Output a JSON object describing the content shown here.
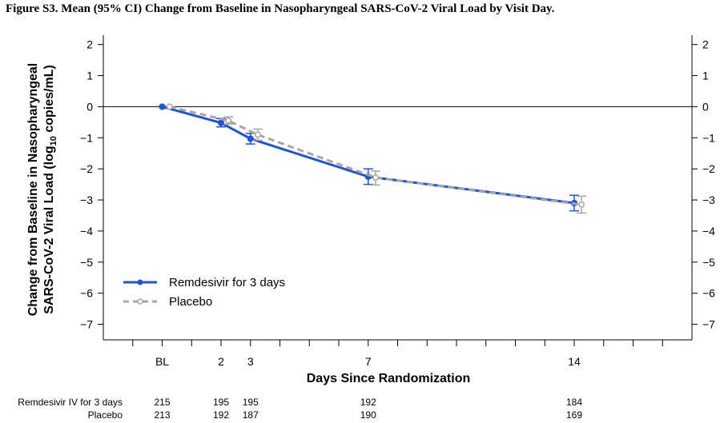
{
  "caption": "Figure S3. Mean (95% CI) Change from Baseline in Nasopharyngeal SARS-CoV-2 Viral Load by Visit Day.",
  "chart_data": {
    "type": "line",
    "title": "",
    "xlabel": "Days Since Randomization",
    "ylabel_line1": "Change from Baseline in Nasopharyngeal",
    "ylabel_line2_pre": "SARS-CoV-2 Viral Load (log",
    "ylabel_line2_sub": "10",
    "ylabel_line2_post": " copies/mL)",
    "x_ticks": [
      {
        "day": 0,
        "label": "BL"
      },
      {
        "day": 2,
        "label": "2"
      },
      {
        "day": 3,
        "label": "3"
      },
      {
        "day": 7,
        "label": "7"
      },
      {
        "day": 14,
        "label": "14"
      }
    ],
    "x_minor_days": [
      -1,
      1,
      4,
      5,
      6,
      8,
      9,
      10,
      11,
      12,
      13,
      15,
      16,
      17
    ],
    "xlim": [
      -2,
      18
    ],
    "y_ticks": [
      2,
      1,
      0,
      -1,
      -2,
      -3,
      -4,
      -5,
      -6,
      -7
    ],
    "y_tick_labels": [
      "2",
      "1",
      "0",
      "−1",
      "−2",
      "−3",
      "−4",
      "−5",
      "−6",
      "−7"
    ],
    "ylim": [
      -7.5,
      2.3
    ],
    "reference_line_y": 0,
    "legend_position": "bottom-left",
    "series": [
      {
        "name": "Remdesivir for 3 days",
        "color": "#2255cc",
        "style": "solid",
        "x": [
          0,
          2,
          3,
          7,
          14
        ],
        "y": [
          0,
          -0.52,
          -1.03,
          -2.25,
          -3.1
        ],
        "ci_low": [
          0,
          -0.65,
          -1.2,
          -2.5,
          -3.35
        ],
        "ci_high": [
          0,
          -0.38,
          -0.86,
          -2.0,
          -2.85
        ],
        "n_label": "Remdesivir IV for 3 days",
        "n": [
          "215",
          "195",
          "195",
          "192",
          "184"
        ]
      },
      {
        "name": "Placebo",
        "color": "#a6a6a6",
        "style": "dashed",
        "x": [
          0,
          2,
          3,
          7,
          14
        ],
        "y": [
          0,
          -0.45,
          -0.9,
          -2.28,
          -3.15
        ],
        "ci_low": [
          0,
          -0.56,
          -1.08,
          -2.52,
          -3.42
        ],
        "ci_high": [
          0,
          -0.33,
          -0.72,
          -2.07,
          -2.88
        ],
        "n_label": "Placebo",
        "n": [
          "213",
          "192",
          "187",
          "190",
          "169"
        ]
      }
    ]
  }
}
